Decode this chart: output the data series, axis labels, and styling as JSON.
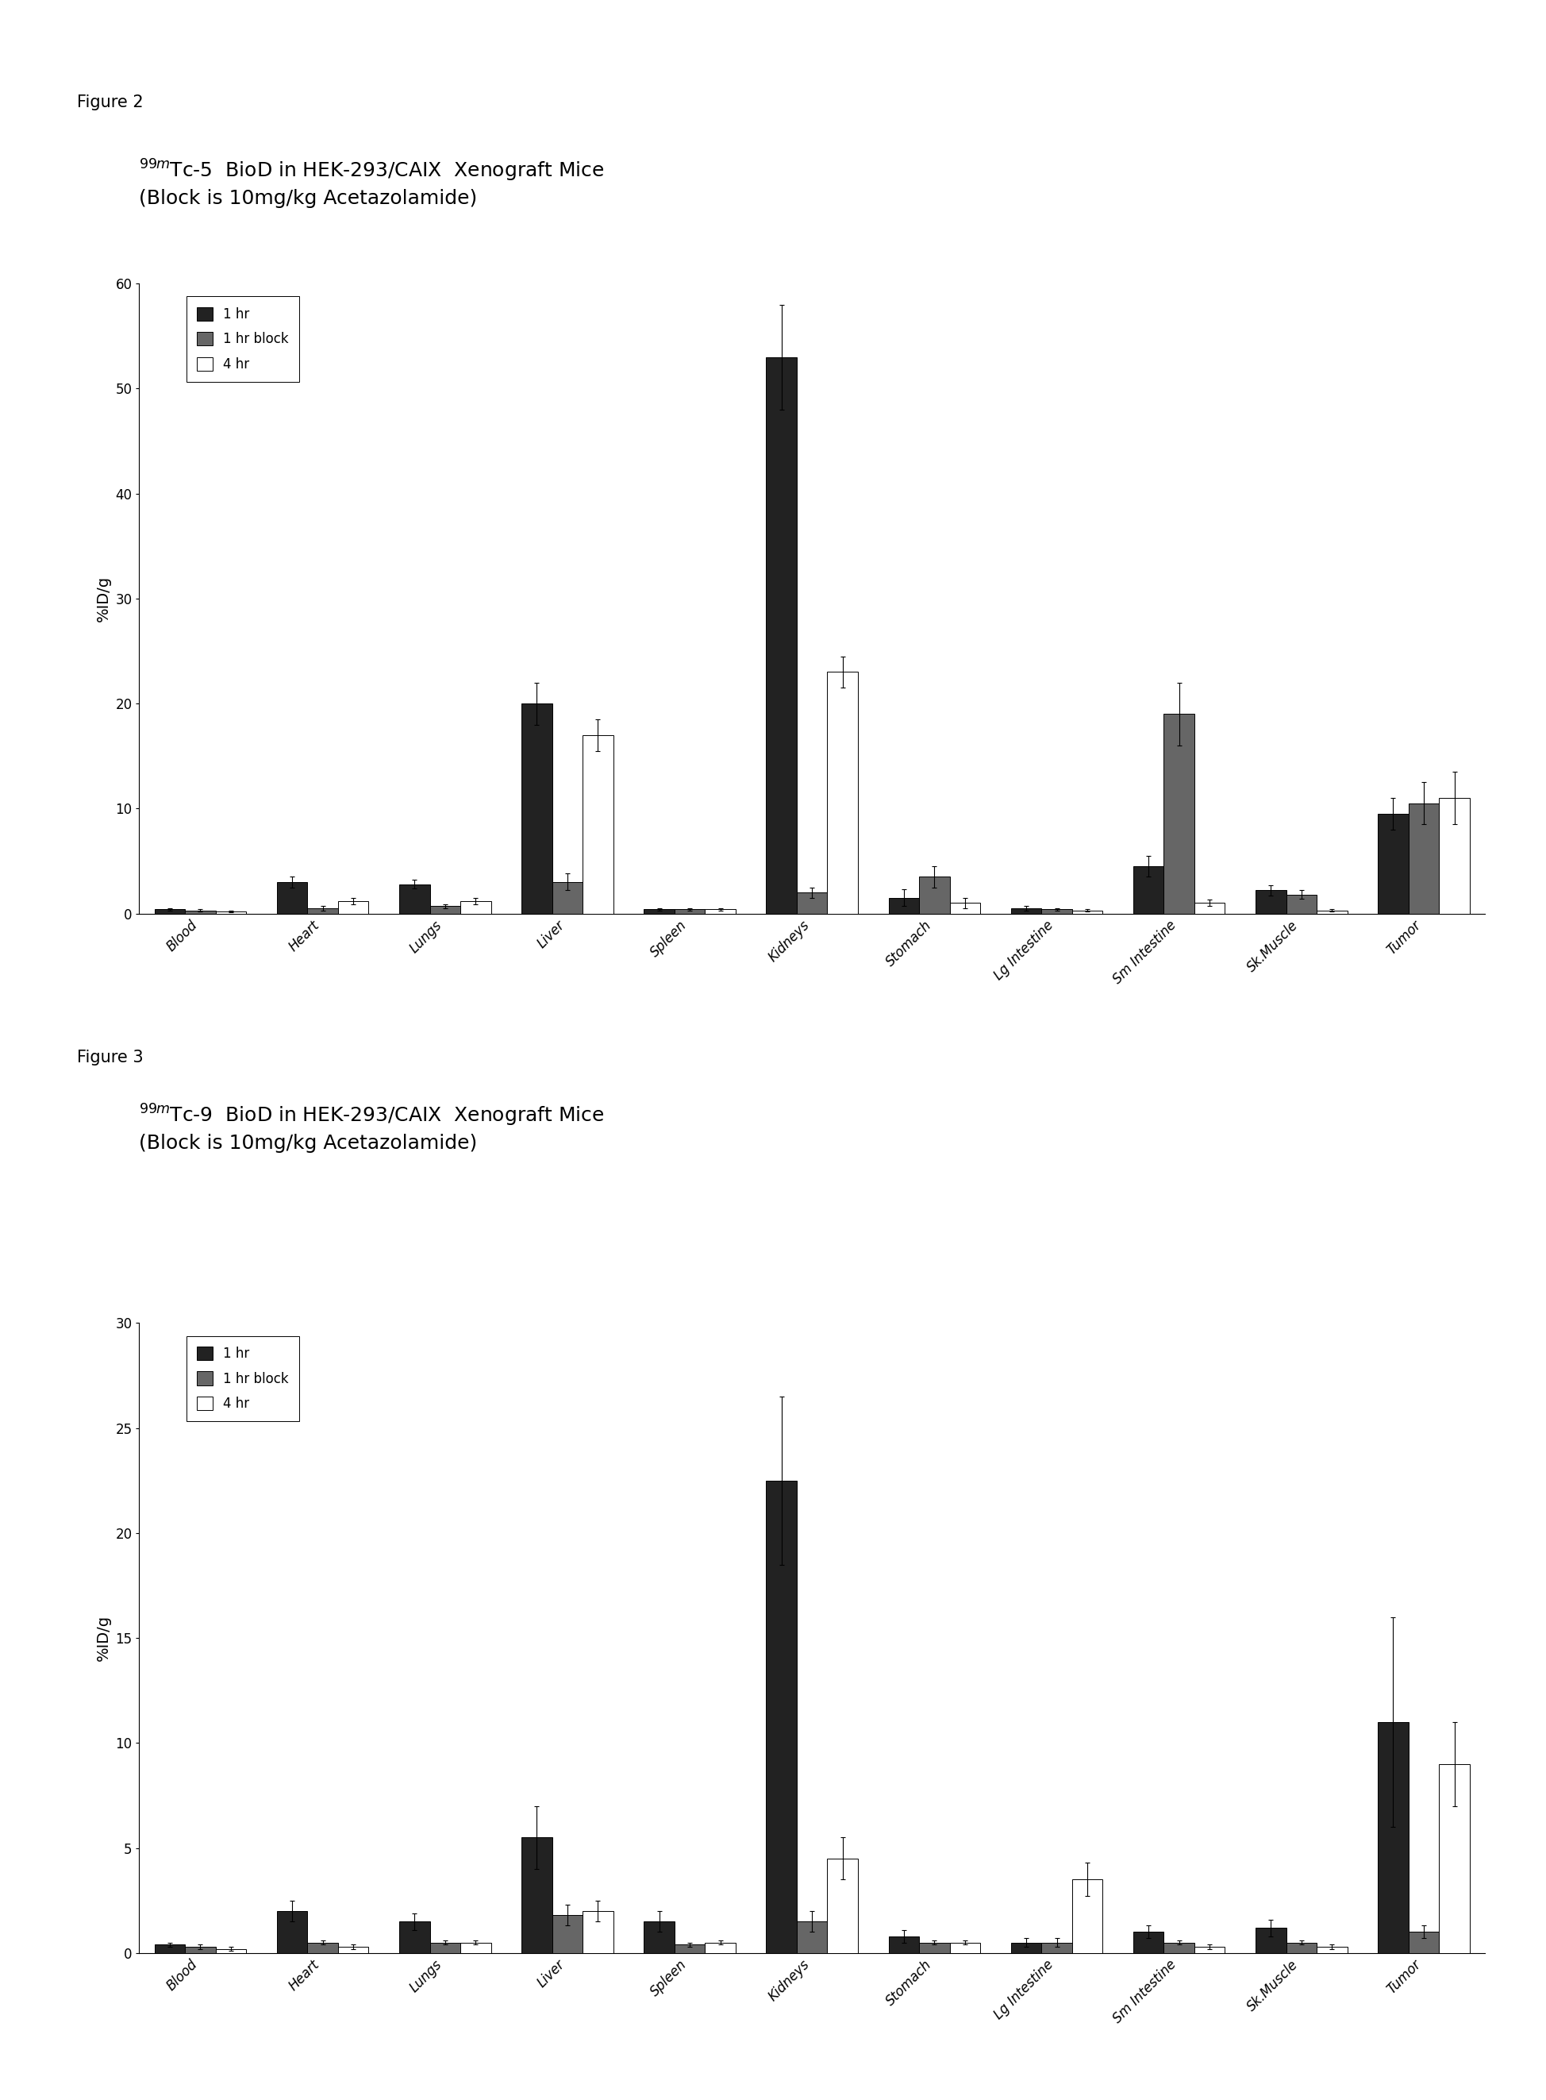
{
  "fig2": {
    "title_line1": "$^{99m}$Tc-5  BioD in HEK-293/CAIX  Xenograft Mice",
    "title_line2": "(Block is 10mg/kg Acetazolamide)",
    "ylabel": "%ID/g",
    "ylim": [
      0,
      60
    ],
    "yticks": [
      0,
      10,
      20,
      30,
      40,
      50,
      60
    ],
    "categories": [
      "Blood",
      "Heart",
      "Lungs",
      "Liver",
      "Spleen",
      "Kidneys",
      "Stomach",
      "Lg Intestine",
      "Sm Intestine",
      "Sk.Muscle",
      "Tumor"
    ],
    "series_1hr": [
      0.4,
      3.0,
      2.8,
      20.0,
      0.4,
      53.0,
      1.5,
      0.5,
      4.5,
      2.2,
      9.5
    ],
    "series_1hr_block": [
      0.3,
      0.5,
      0.7,
      3.0,
      0.4,
      2.0,
      3.5,
      0.4,
      19.0,
      1.8,
      10.5
    ],
    "series_4hr": [
      0.2,
      1.2,
      1.2,
      17.0,
      0.4,
      23.0,
      1.0,
      0.3,
      1.0,
      0.3,
      11.0
    ],
    "err_1hr": [
      0.1,
      0.5,
      0.4,
      2.0,
      0.1,
      5.0,
      0.8,
      0.2,
      1.0,
      0.5,
      1.5
    ],
    "err_1hr_block": [
      0.1,
      0.2,
      0.2,
      0.8,
      0.1,
      0.5,
      1.0,
      0.1,
      3.0,
      0.4,
      2.0
    ],
    "err_4hr": [
      0.1,
      0.3,
      0.3,
      1.5,
      0.1,
      1.5,
      0.5,
      0.1,
      0.3,
      0.1,
      2.5
    ],
    "figure_label": "Figure 2"
  },
  "fig3": {
    "title_line1": "$^{99m}$Tc-9  BioD in HEK-293/CAIX  Xenograft Mice",
    "title_line2": "(Block is 10mg/kg Acetazolamide)",
    "ylabel": "%ID/g",
    "ylim": [
      0,
      30
    ],
    "yticks": [
      0,
      5,
      10,
      15,
      20,
      25,
      30
    ],
    "categories": [
      "Blood",
      "Heart",
      "Lungs",
      "Liver",
      "Spleen",
      "Kidneys",
      "Stomach",
      "Lg Intestine",
      "Sm Intestine",
      "Sk.Muscle",
      "Tumor"
    ],
    "series_1hr": [
      0.4,
      2.0,
      1.5,
      5.5,
      1.5,
      22.5,
      0.8,
      0.5,
      1.0,
      1.2,
      11.0
    ],
    "series_1hr_block": [
      0.3,
      0.5,
      0.5,
      1.8,
      0.4,
      1.5,
      0.5,
      0.5,
      0.5,
      0.5,
      1.0
    ],
    "series_4hr": [
      0.2,
      0.3,
      0.5,
      2.0,
      0.5,
      4.5,
      0.5,
      3.5,
      0.3,
      0.3,
      9.0
    ],
    "err_1hr": [
      0.1,
      0.5,
      0.4,
      1.5,
      0.5,
      4.0,
      0.3,
      0.2,
      0.3,
      0.4,
      5.0
    ],
    "err_1hr_block": [
      0.1,
      0.1,
      0.1,
      0.5,
      0.1,
      0.5,
      0.1,
      0.2,
      0.1,
      0.1,
      0.3
    ],
    "err_4hr": [
      0.1,
      0.1,
      0.1,
      0.5,
      0.1,
      1.0,
      0.1,
      0.8,
      0.1,
      0.1,
      2.0
    ],
    "figure_label": "Figure 3"
  },
  "color_1hr": "#222222",
  "color_1hr_block": "#666666",
  "color_4hr": "#ffffff",
  "bar_width": 0.25,
  "legend_labels": [
    "1 hr",
    "1 hr block",
    "4 hr"
  ],
  "tick_fontsize": 12,
  "ylabel_fontsize": 14,
  "title_fontsize": 18,
  "figlabel_fontsize": 15
}
